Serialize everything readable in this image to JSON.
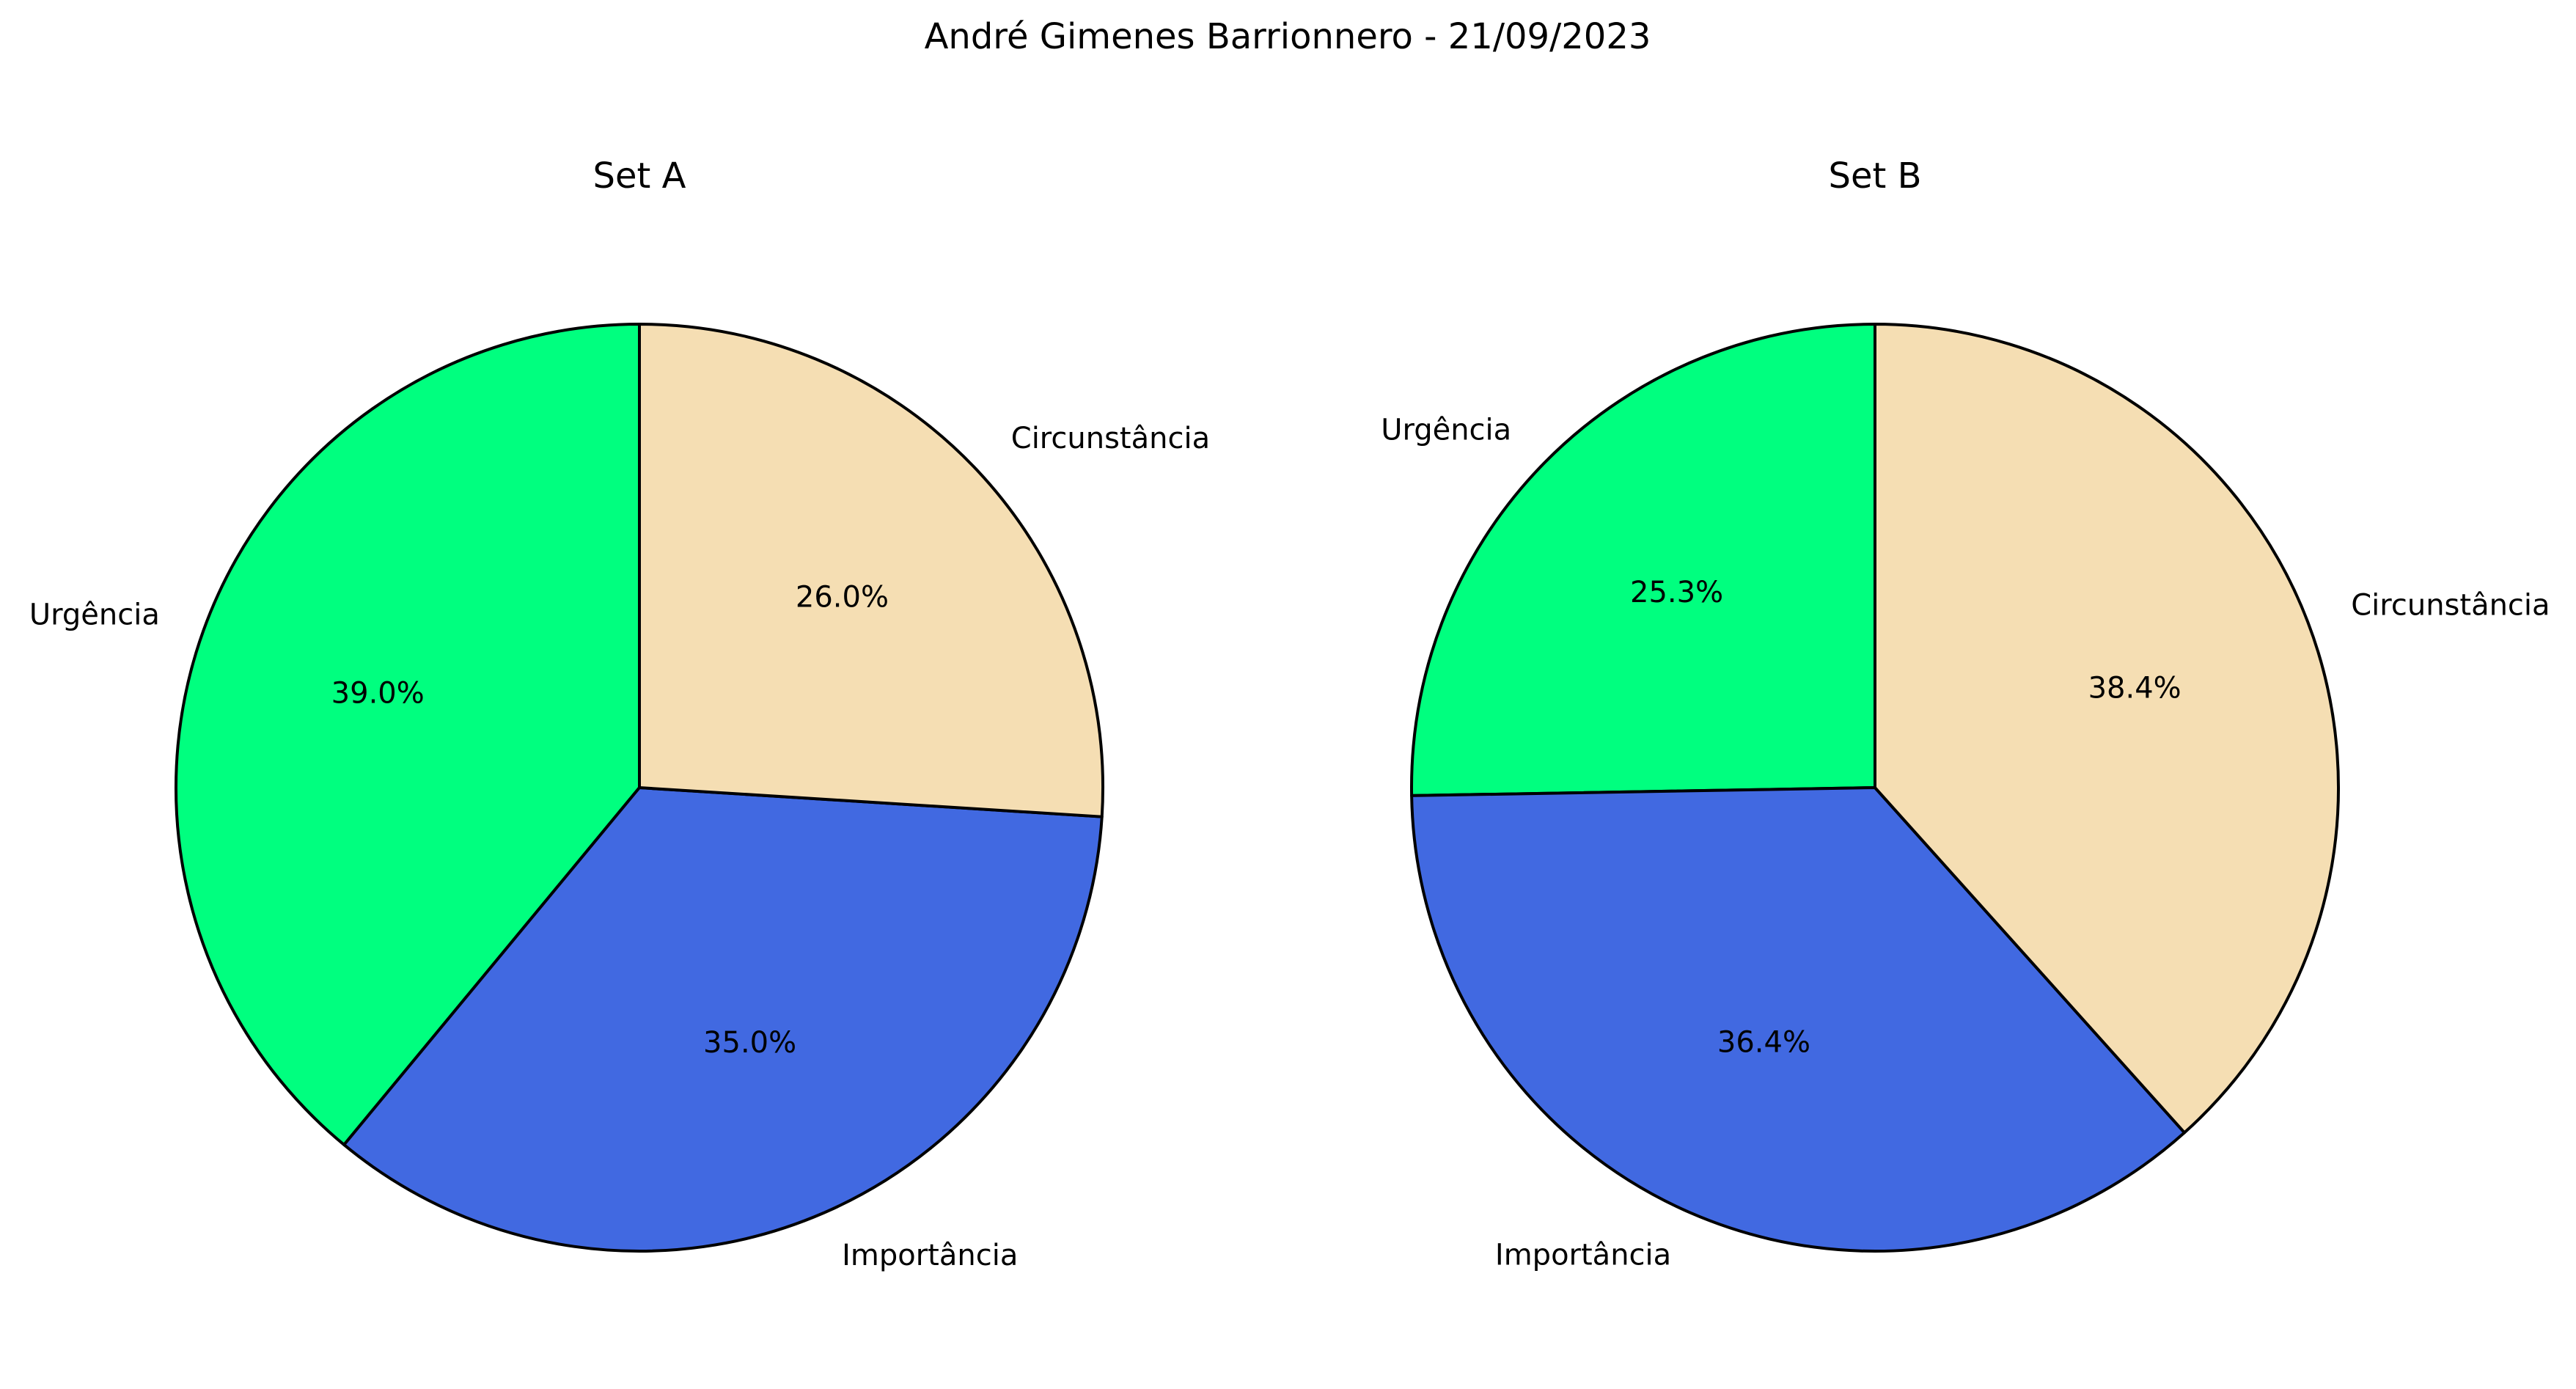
{
  "figure": {
    "suptitle": "André Gimenes Barrionnero - 21/09/2023"
  },
  "chart_data": [
    {
      "type": "pie",
      "title": "Set A",
      "labels": [
        "Urgência",
        "Importância",
        "Circunstância"
      ],
      "values": [
        39.0,
        35.0,
        26.0
      ],
      "autopct": [
        "39.0%",
        "35.0%",
        "26.0%"
      ],
      "colors": [
        "#00FF7F",
        "#4169E1",
        "#F5DEB3"
      ],
      "edge_color": "#000000",
      "start_angle_deg": 90,
      "direction": "counterclockwise"
    },
    {
      "type": "pie",
      "title": "Set B",
      "labels": [
        "Urgência",
        "Importância",
        "Circunstância"
      ],
      "values": [
        25.3,
        36.4,
        38.4
      ],
      "autopct": [
        "25.3%",
        "36.4%",
        "38.4%"
      ],
      "colors": [
        "#00FF7F",
        "#4169E1",
        "#F5DEB3"
      ],
      "edge_color": "#000000",
      "start_angle_deg": 90,
      "direction": "counterclockwise"
    }
  ]
}
